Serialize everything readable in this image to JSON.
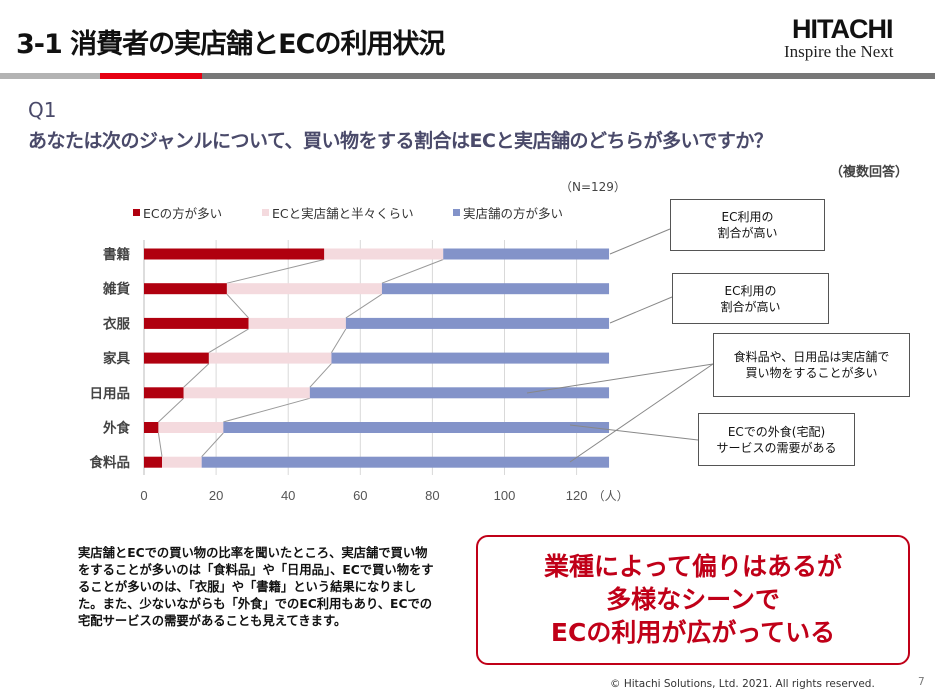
{
  "header": {
    "title": "3-1 消費者の実店舗とECの利用状況",
    "logo": "HITACHI",
    "tagline": "Inspire the Next"
  },
  "question": {
    "id": "Q1",
    "text": "あなたは次のジャンルについて、買い物をする割合はECと実店舗のどちらが多いですか？",
    "note": "（複数回答）"
  },
  "chart_data": {
    "type": "bar",
    "stacked": true,
    "orientation": "horizontal",
    "sample": "（N=129）",
    "unit": "（人）",
    "categories": [
      "書籍",
      "雑貨",
      "衣服",
      "家具",
      "日用品",
      "外食",
      "食料品"
    ],
    "series": [
      {
        "name": "ECの方が多い",
        "color": "#b0000f",
        "values": [
          50,
          23,
          29,
          18,
          11,
          4,
          5
        ]
      },
      {
        "name": "ECと実店舗と半々くらい",
        "color": "#f4dade",
        "values": [
          33,
          43,
          27,
          34,
          35,
          18,
          11
        ]
      },
      {
        "name": "実店舗の方が多い",
        "color": "#8393c9",
        "values": [
          46,
          63,
          73,
          77,
          83,
          107,
          113
        ]
      }
    ],
    "xlim": [
      0,
      129
    ],
    "xticks": [
      0,
      20,
      40,
      60,
      80,
      100,
      120
    ],
    "grid": true,
    "legend": "top"
  },
  "callouts": [
    {
      "line1": "EC利用の",
      "line2": "割合が高い"
    },
    {
      "line1": "EC利用の",
      "line2": "割合が高い"
    },
    {
      "line1": "食料品や、日用品は実店舗で",
      "line2": "買い物をすることが多い"
    },
    {
      "line1": "ECでの外食(宅配)",
      "line2": "サービスの需要がある"
    }
  ],
  "body_text": "実店舗とECでの買い物の比率を聞いたところ、実店舗で買い物をすることが多いのは「食料品」や「日用品」、ECで買い物をすることが多いのは、「衣服」や「書籍」という結果になりました。また、少ないながらも「外食」でのEC利用もあり、ECでの宅配サービスの需要があることも見えてきます。",
  "conclusion": [
    "業種によって偏りはあるが",
    "多様なシーンで",
    "ECの利用が広がっている"
  ],
  "footer": {
    "copyright": "© Hitachi Solutions, Ltd. 2021. All rights reserved.",
    "page": "7"
  }
}
